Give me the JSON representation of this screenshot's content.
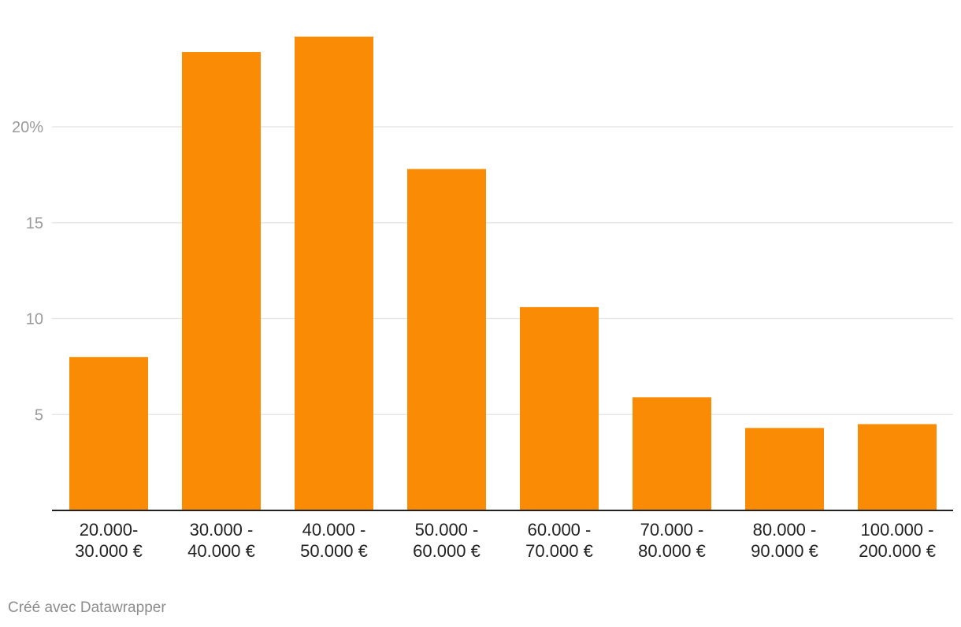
{
  "chart_data": {
    "type": "bar",
    "categories": [
      [
        "20.000-",
        "30.000 €"
      ],
      [
        "30.000 -",
        "40.000 €"
      ],
      [
        "40.000 -",
        "50.000 €"
      ],
      [
        "50.000 -",
        "60.000 €"
      ],
      [
        "60.000 -",
        "70.000 €"
      ],
      [
        "70.000 -",
        "80.000 €"
      ],
      [
        "80.000 -",
        "90.000 €"
      ],
      [
        "100.000 -",
        "200.000 €"
      ]
    ],
    "values": [
      8.0,
      23.9,
      24.7,
      17.8,
      10.6,
      5.9,
      4.3,
      4.5
    ],
    "ylim": [
      0,
      26.5
    ],
    "yticks": [
      5,
      10,
      15,
      20
    ],
    "ytick_labels": [
      "5",
      "10",
      "15",
      "20%"
    ],
    "grid": true,
    "bar_color": "#f98c04",
    "title": "",
    "xlabel": "",
    "ylabel": ""
  },
  "footer": {
    "credit": "Créé avec Datawrapper"
  }
}
